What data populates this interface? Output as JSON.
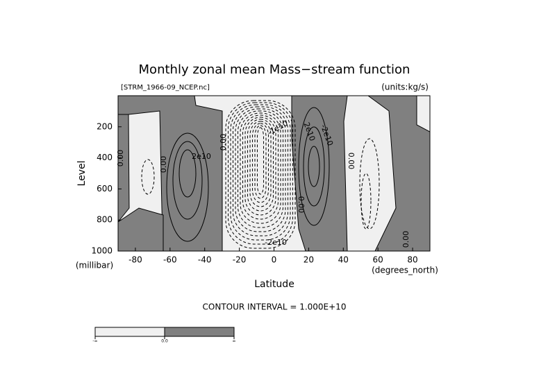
{
  "chart_data": {
    "type": "contour",
    "title": "Monthly zonal mean Mass−stream function",
    "subtitle_left": "[STRM_1966-09_NCEP.nc]",
    "subtitle_right": "(units:kg/s)",
    "xlabel": "Latitude",
    "xunits": "(degrees_north)",
    "ylabel": "Level",
    "yunits": "(millibar)",
    "note": "CONTOUR INTERVAL = 1.000E+10",
    "xlim": [
      -90,
      90
    ],
    "xticks": [
      -80,
      -60,
      -40,
      -20,
      0,
      20,
      40,
      60,
      80
    ],
    "ylim": [
      1000,
      0
    ],
    "yticks": [
      200,
      400,
      600,
      800,
      1000
    ],
    "contour_labels": [
      "2e10",
      "-2e10",
      "0.00",
      "0.00",
      "0.00",
      "0.00",
      "2e10",
      "0.00",
      "0.00",
      "-1e10",
      "-2e10"
    ],
    "colorbar_labels": [
      "-∞",
      "0.0",
      "∞"
    ],
    "positive_color": "#808080",
    "negative_color": "#f0f0f0"
  }
}
